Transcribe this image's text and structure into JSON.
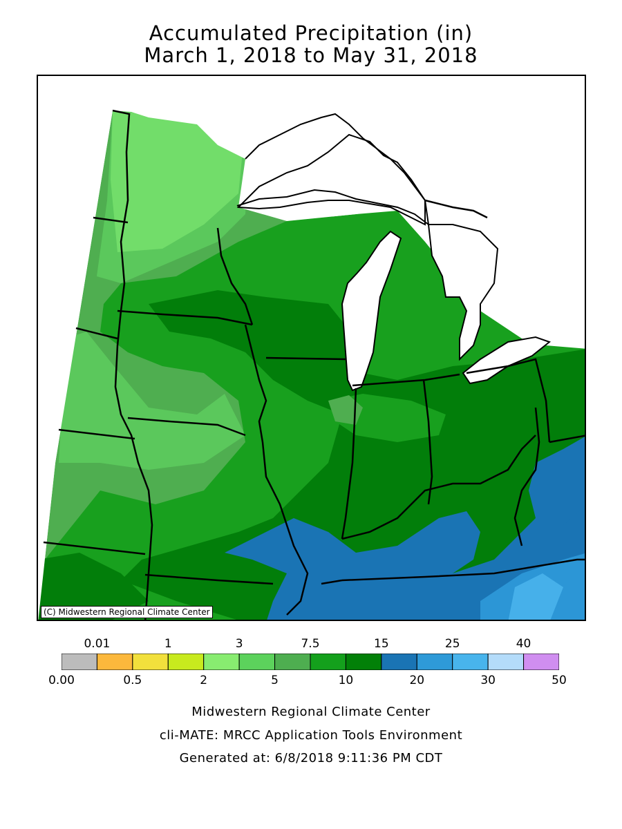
{
  "title": {
    "line1": "Accumulated Precipitation (in)",
    "line2": "March 1, 2018 to May 31, 2018"
  },
  "map": {
    "copyright": "(C) Midwestern Regional Climate Center",
    "colors": {
      "lake": "#ffffff",
      "c5_75": "#4fae50",
      "c3_5": "#5bc85c",
      "c2_3": "#72dd6a",
      "c75_10": "#18a01e",
      "c10_15": "#027e0a",
      "c15_20": "#1a74b4",
      "c20_25": "#2c96d6",
      "c25_30": "#46b0ea"
    }
  },
  "legend": {
    "bins": [
      {
        "color": "#bcbcbc"
      },
      {
        "color": "#fcb83c"
      },
      {
        "color": "#f2e03c"
      },
      {
        "color": "#c8ea1e"
      },
      {
        "color": "#88ec70"
      },
      {
        "color": "#5cd25c"
      },
      {
        "color": "#4eae50"
      },
      {
        "color": "#14a01c"
      },
      {
        "color": "#028008"
      },
      {
        "color": "#1a74b4"
      },
      {
        "color": "#2e9ad8"
      },
      {
        "color": "#48b4ec"
      },
      {
        "color": "#b4dcfa"
      },
      {
        "color": "#d08ef0"
      }
    ],
    "top_labels": [
      "0.01",
      "1",
      "3",
      "7.5",
      "15",
      "25",
      "40"
    ],
    "bottom_labels": [
      "0.00",
      "0.5",
      "2",
      "5",
      "10",
      "20",
      "30",
      "50"
    ]
  },
  "footer": {
    "line1": "Midwestern Regional Climate Center",
    "line2": "cli-MATE: MRCC Application Tools Environment",
    "line3": "Generated at: 6/8/2018 9:11:36 PM CDT"
  }
}
